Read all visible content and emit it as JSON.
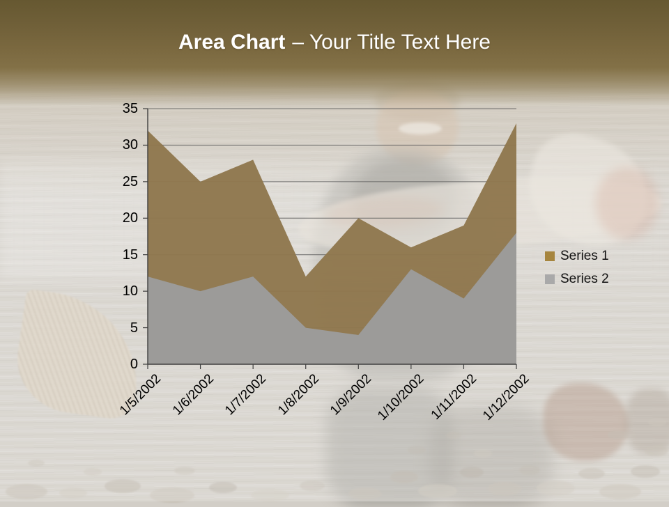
{
  "slide": {
    "title": {
      "bold": "Area Chart",
      "rest": "– Your Title Text Here"
    }
  },
  "chart_data": {
    "type": "area",
    "stacking": "none",
    "categories": [
      "1/5/2002",
      "1/6/2002",
      "1/7/2002",
      "1/8/2002",
      "1/9/2002",
      "1/10/2002",
      "1/11/2002",
      "1/12/2002"
    ],
    "series": [
      {
        "name": "Series 1",
        "values": [
          32,
          25,
          28,
          12,
          20,
          16,
          19,
          33
        ],
        "fill": "#8F784E",
        "legend_swatch": "#A6853E"
      },
      {
        "name": "Series 2",
        "values": [
          12,
          10,
          12,
          5,
          4,
          13,
          9,
          18
        ],
        "fill": "#9C9C9C",
        "legend_swatch": "#A9A9A9"
      }
    ],
    "ylim": [
      0,
      35
    ],
    "yticks": [
      0,
      5,
      10,
      15,
      20,
      25,
      30,
      35
    ],
    "grid": true,
    "legend_position": "right",
    "axis_color": "#3f3f3f",
    "grid_color": "#5a5a5a",
    "tick_label_color": "#000000"
  }
}
